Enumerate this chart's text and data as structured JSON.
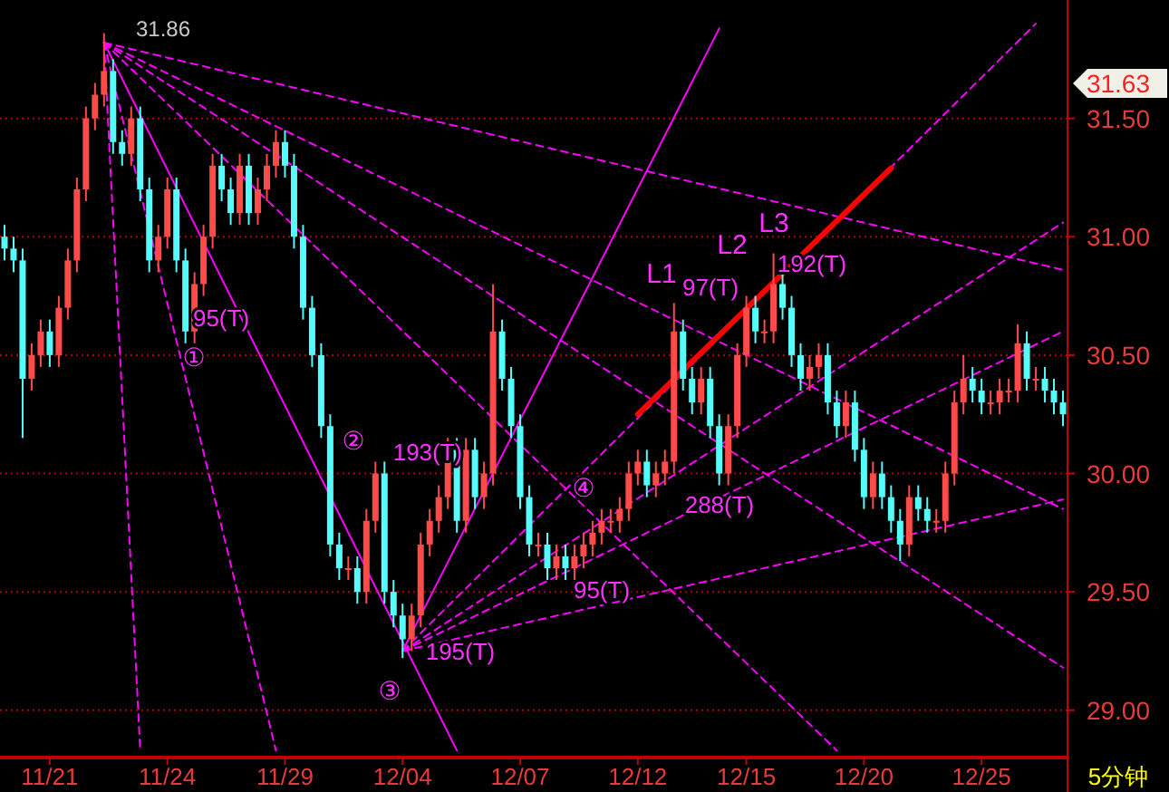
{
  "chart_data": {
    "type": "candlestick",
    "categories": [
      null,
      null,
      null,
      null,
      null,
      "11/21",
      null,
      null,
      null,
      null,
      null,
      null,
      null,
      null,
      null,
      null,
      null,
      null,
      "11/24",
      null,
      null,
      null,
      null,
      null,
      null,
      null,
      null,
      null,
      null,
      null,
      null,
      "11/29",
      null,
      null,
      null,
      null,
      null,
      null,
      null,
      null,
      null,
      null,
      null,
      null,
      "12/04",
      null,
      null,
      null,
      null,
      null,
      null,
      null,
      null,
      null,
      null,
      null,
      null,
      "12/07",
      null,
      null,
      null,
      null,
      null,
      null,
      null,
      null,
      null,
      null,
      null,
      null,
      "12/12",
      null,
      null,
      null,
      null,
      null,
      null,
      null,
      null,
      null,
      null,
      null,
      "12/15",
      null,
      null,
      null,
      null,
      null,
      null,
      null,
      null,
      null,
      null,
      null,
      null,
      "12/20",
      null,
      null,
      null,
      null,
      null,
      null,
      null,
      null,
      null,
      null,
      null,
      null,
      "12/25",
      null,
      null,
      null,
      null,
      null,
      null,
      null,
      null,
      null
    ],
    "ohlc": [
      [
        31.0,
        31.05,
        30.9,
        30.95
      ],
      [
        30.95,
        31.0,
        30.85,
        30.9
      ],
      [
        30.9,
        30.95,
        30.15,
        30.4
      ],
      [
        30.4,
        30.55,
        30.35,
        30.5
      ],
      [
        30.5,
        30.65,
        30.45,
        30.6
      ],
      [
        30.6,
        30.65,
        30.45,
        30.5
      ],
      [
        30.5,
        30.75,
        30.45,
        30.7
      ],
      [
        30.7,
        30.95,
        30.65,
        30.9
      ],
      [
        30.9,
        31.25,
        30.85,
        31.2
      ],
      [
        31.2,
        31.55,
        31.15,
        31.5
      ],
      [
        31.5,
        31.65,
        31.45,
        31.6
      ],
      [
        31.6,
        31.86,
        31.55,
        31.7
      ],
      [
        31.7,
        31.75,
        31.35,
        31.4
      ],
      [
        31.4,
        31.45,
        31.3,
        31.35
      ],
      [
        31.35,
        31.55,
        31.3,
        31.5
      ],
      [
        31.5,
        31.55,
        31.15,
        31.2
      ],
      [
        31.2,
        31.25,
        30.85,
        30.9
      ],
      [
        30.9,
        31.05,
        30.85,
        31.0
      ],
      [
        31.0,
        31.25,
        30.95,
        31.2
      ],
      [
        31.2,
        31.25,
        30.85,
        30.9
      ],
      [
        30.9,
        30.95,
        30.55,
        30.6
      ],
      [
        30.6,
        30.85,
        30.55,
        30.8
      ],
      [
        30.8,
        31.05,
        30.75,
        31.0
      ],
      [
        31.0,
        31.35,
        30.95,
        31.3
      ],
      [
        31.3,
        31.35,
        31.15,
        31.2
      ],
      [
        31.2,
        31.25,
        31.05,
        31.1
      ],
      [
        31.1,
        31.35,
        31.05,
        31.3
      ],
      [
        31.3,
        31.35,
        31.05,
        31.1
      ],
      [
        31.1,
        31.25,
        31.05,
        31.2
      ],
      [
        31.2,
        31.35,
        31.15,
        31.3
      ],
      [
        31.3,
        31.45,
        31.25,
        31.4
      ],
      [
        31.4,
        31.45,
        31.25,
        31.3
      ],
      [
        31.3,
        31.35,
        30.95,
        31.0
      ],
      [
        31.0,
        31.05,
        30.65,
        30.7
      ],
      [
        30.7,
        30.75,
        30.45,
        30.5
      ],
      [
        30.5,
        30.55,
        30.15,
        30.2
      ],
      [
        30.2,
        30.25,
        29.65,
        29.7
      ],
      [
        29.7,
        29.75,
        29.55,
        29.6
      ],
      [
        29.6,
        29.65,
        29.55,
        29.6
      ],
      [
        29.6,
        29.65,
        29.45,
        29.5
      ],
      [
        29.5,
        29.85,
        29.45,
        29.8
      ],
      [
        29.8,
        30.05,
        29.75,
        30.0
      ],
      [
        30.0,
        30.05,
        29.45,
        29.5
      ],
      [
        29.5,
        29.55,
        29.35,
        29.4
      ],
      [
        29.4,
        29.45,
        29.22,
        29.3
      ],
      [
        29.3,
        29.45,
        29.25,
        29.4
      ],
      [
        29.4,
        29.75,
        29.35,
        29.7
      ],
      [
        29.7,
        29.85,
        29.65,
        29.8
      ],
      [
        29.8,
        29.95,
        29.75,
        29.9
      ],
      [
        29.9,
        30.15,
        29.85,
        30.1
      ],
      [
        30.1,
        30.15,
        29.75,
        29.8
      ],
      [
        29.8,
        30.15,
        29.75,
        30.1
      ],
      [
        30.1,
        30.15,
        29.85,
        29.9
      ],
      [
        29.9,
        30.05,
        29.85,
        30.0
      ],
      [
        30.0,
        30.8,
        29.95,
        30.6
      ],
      [
        30.6,
        30.65,
        30.35,
        30.4
      ],
      [
        30.4,
        30.45,
        30.15,
        30.2
      ],
      [
        30.2,
        30.25,
        29.85,
        29.9
      ],
      [
        29.9,
        29.95,
        29.65,
        29.7
      ],
      [
        29.7,
        29.75,
        29.65,
        29.7
      ],
      [
        29.7,
        29.75,
        29.55,
        29.6
      ],
      [
        29.6,
        29.7,
        29.55,
        29.65
      ],
      [
        29.65,
        29.7,
        29.55,
        29.6
      ],
      [
        29.6,
        29.7,
        29.55,
        29.65
      ],
      [
        29.65,
        29.75,
        29.6,
        29.7
      ],
      [
        29.7,
        29.8,
        29.65,
        29.75
      ],
      [
        29.75,
        29.85,
        29.7,
        29.8
      ],
      [
        29.8,
        29.85,
        29.75,
        29.8
      ],
      [
        29.8,
        29.9,
        29.75,
        29.85
      ],
      [
        29.85,
        30.05,
        29.8,
        30.0
      ],
      [
        30.0,
        30.1,
        29.95,
        30.05
      ],
      [
        30.05,
        30.1,
        29.9,
        29.95
      ],
      [
        29.95,
        30.05,
        29.9,
        30.0
      ],
      [
        30.0,
        30.1,
        29.95,
        30.05
      ],
      [
        30.05,
        30.72,
        30.0,
        30.6
      ],
      [
        30.6,
        30.65,
        30.35,
        30.4
      ],
      [
        30.4,
        30.45,
        30.25,
        30.3
      ],
      [
        30.3,
        30.45,
        30.25,
        30.4
      ],
      [
        30.4,
        30.45,
        30.15,
        30.2
      ],
      [
        30.2,
        30.25,
        29.95,
        30.0
      ],
      [
        30.0,
        30.25,
        29.95,
        30.2
      ],
      [
        30.2,
        30.55,
        30.15,
        30.5
      ],
      [
        30.5,
        30.75,
        30.45,
        30.7
      ],
      [
        30.7,
        30.75,
        30.55,
        30.6
      ],
      [
        30.6,
        30.65,
        30.55,
        30.6
      ],
      [
        30.6,
        30.93,
        30.55,
        30.8
      ],
      [
        30.8,
        30.85,
        30.65,
        30.7
      ],
      [
        30.7,
        30.75,
        30.45,
        30.5
      ],
      [
        30.5,
        30.55,
        30.35,
        30.4
      ],
      [
        30.4,
        30.5,
        30.35,
        30.45
      ],
      [
        30.45,
        30.55,
        30.4,
        30.5
      ],
      [
        30.5,
        30.55,
        30.25,
        30.3
      ],
      [
        30.3,
        30.35,
        30.15,
        30.2
      ],
      [
        30.2,
        30.35,
        30.15,
        30.3
      ],
      [
        30.3,
        30.35,
        30.05,
        30.1
      ],
      [
        30.1,
        30.15,
        29.85,
        29.9
      ],
      [
        29.9,
        30.05,
        29.85,
        30.0
      ],
      [
        30.0,
        30.05,
        29.85,
        29.9
      ],
      [
        29.9,
        29.95,
        29.75,
        29.8
      ],
      [
        29.8,
        29.85,
        29.63,
        29.7
      ],
      [
        29.7,
        29.95,
        29.65,
        29.9
      ],
      [
        29.9,
        29.95,
        29.8,
        29.85
      ],
      [
        29.85,
        29.9,
        29.75,
        29.8
      ],
      [
        29.8,
        29.85,
        29.75,
        29.8
      ],
      [
        29.8,
        30.05,
        29.75,
        30.0
      ],
      [
        30.0,
        30.35,
        29.95,
        30.3
      ],
      [
        30.3,
        30.5,
        30.25,
        30.4
      ],
      [
        30.4,
        30.45,
        30.3,
        30.35
      ],
      [
        30.35,
        30.4,
        30.25,
        30.3
      ],
      [
        30.3,
        30.35,
        30.25,
        30.3
      ],
      [
        30.3,
        30.4,
        30.25,
        30.35
      ],
      [
        30.35,
        30.4,
        30.3,
        30.35
      ],
      [
        30.35,
        30.63,
        30.3,
        30.55
      ],
      [
        30.55,
        30.6,
        30.35,
        30.4
      ],
      [
        30.4,
        30.45,
        30.35,
        30.4
      ],
      [
        30.4,
        30.45,
        30.3,
        30.35
      ],
      [
        30.35,
        30.4,
        30.25,
        30.3
      ],
      [
        30.3,
        30.35,
        30.2,
        30.25
      ]
    ],
    "colors": [
      "#54fcfc",
      "#54fcfc",
      "#54fcfc",
      "#ff4a4a",
      "#ff4a4a",
      "#54fcfc",
      "#ff4a4a",
      "#ff4a4a",
      "#ff4a4a",
      "#ff4a4a",
      "#ff4a4a",
      "#ff4a4a",
      "#54fcfc",
      "#54fcfc",
      "#ff4a4a",
      "#54fcfc",
      "#54fcfc",
      "#ff4a4a",
      "#ff4a4a",
      "#54fcfc",
      "#54fcfc",
      "#ff4a4a",
      "#ff4a4a",
      "#ff4a4a",
      "#54fcfc",
      "#54fcfc",
      "#ff4a4a",
      "#54fcfc",
      "#ff4a4a",
      "#ff4a4a",
      "#ff4a4a",
      "#54fcfc",
      "#54fcfc",
      "#54fcfc",
      "#54fcfc",
      "#54fcfc",
      "#54fcfc",
      "#54fcfc",
      "#ff4a4a",
      "#54fcfc",
      "#ff4a4a",
      "#ff4a4a",
      "#54fcfc",
      "#54fcfc",
      "#54fcfc",
      "#ff4a4a",
      "#ff4a4a",
      "#ff4a4a",
      "#ff4a4a",
      "#ff4a4a",
      "#54fcfc",
      "#ff4a4a",
      "#54fcfc",
      "#ff4a4a",
      "#ff4a4a",
      "#54fcfc",
      "#54fcfc",
      "#54fcfc",
      "#54fcfc",
      "#ff4a4a",
      "#54fcfc",
      "#ff4a4a",
      "#54fcfc",
      "#ff4a4a",
      "#ff4a4a",
      "#ff4a4a",
      "#ff4a4a",
      "#ff4a4a",
      "#ff4a4a",
      "#ff4a4a",
      "#ff4a4a",
      "#54fcfc",
      "#ff4a4a",
      "#ff4a4a",
      "#ff4a4a",
      "#54fcfc",
      "#54fcfc",
      "#ff4a4a",
      "#54fcfc",
      "#54fcfc",
      "#ff4a4a",
      "#ff4a4a",
      "#ff4a4a",
      "#54fcfc",
      "#ff4a4a",
      "#ff4a4a",
      "#54fcfc",
      "#54fcfc",
      "#54fcfc",
      "#ff4a4a",
      "#ff4a4a",
      "#54fcfc",
      "#54fcfc",
      "#ff4a4a",
      "#54fcfc",
      "#54fcfc",
      "#ff4a4a",
      "#54fcfc",
      "#54fcfc",
      "#54fcfc",
      "#ff4a4a",
      "#54fcfc",
      "#54fcfc",
      "#ff4a4a",
      "#ff4a4a",
      "#ff4a4a",
      "#ff4a4a",
      "#54fcfc",
      "#54fcfc",
      "#ff4a4a",
      "#ff4a4a",
      "#ff4a4a",
      "#ff4a4a",
      "#54fcfc",
      "#ff4a4a",
      "#54fcfc",
      "#54fcfc",
      "#54fcfc"
    ],
    "ylim": [
      28.8,
      32.0
    ],
    "yticks": [
      {
        "value": 29,
        "label": "29.00"
      },
      {
        "value": 29.5,
        "label": "29.50"
      },
      {
        "value": 30,
        "label": "30.00"
      },
      {
        "value": 30.5,
        "label": "30.50"
      },
      {
        "value": 31,
        "label": "31.00"
      },
      {
        "value": 31.5,
        "label": "31.50"
      }
    ],
    "grid": "y",
    "series": [
      {
        "type": "line",
        "color": "#ff00ff",
        "line_style": "solid",
        "values": [
          null,
          null,
          null,
          null,
          null,
          null,
          null,
          null,
          null,
          null,
          null,
          31.82,
          null,
          null,
          null,
          null,
          null,
          null,
          null,
          null,
          null,
          null,
          null,
          null,
          null,
          null,
          null,
          null,
          null,
          null,
          null,
          null,
          null,
          null,
          null,
          null,
          null,
          null,
          null,
          null,
          null,
          null,
          null,
          null,
          null,
          null,
          null,
          null,
          null,
          null,
          28.83,
          null,
          null,
          null,
          null,
          null,
          null,
          null,
          null,
          null,
          null,
          null,
          null,
          null,
          null,
          null,
          null,
          null,
          null,
          null,
          null,
          null,
          null,
          null,
          null,
          null,
          null,
          null,
          null,
          null,
          null,
          null,
          null,
          null,
          null,
          null,
          null,
          null,
          null,
          null,
          null,
          null,
          null,
          null,
          null,
          null,
          null,
          null,
          null,
          null,
          null,
          null,
          null,
          null,
          null,
          null,
          null,
          null,
          null,
          null,
          null,
          null,
          null,
          null,
          null,
          null,
          null,
          null
        ]
      },
      {
        "type": "line",
        "color": "#ff00ff",
        "line_style": "dashed",
        "values": [
          null,
          null,
          null,
          null,
          null,
          null,
          null,
          null,
          null,
          null,
          null,
          31.82,
          null,
          null,
          null,
          null,
          null,
          null,
          null,
          null,
          null,
          null,
          null,
          null,
          null,
          null,
          null,
          null,
          null,
          null,
          null,
          null,
          null,
          null,
          null,
          null,
          null,
          null,
          null,
          null,
          null,
          null,
          null,
          null,
          null,
          null,
          null,
          null,
          null,
          null,
          null,
          null,
          null,
          null,
          null,
          null,
          null,
          null,
          null,
          null,
          null,
          null,
          null,
          null,
          null,
          null,
          null,
          null,
          null,
          null,
          null,
          null,
          null,
          null,
          null,
          null,
          null,
          null,
          null,
          null,
          null,
          null,
          null,
          null,
          null,
          null,
          null,
          null,
          null,
          null,
          null,
          null,
          null,
          null,
          null,
          null,
          null,
          null,
          null,
          null,
          null,
          null,
          null,
          null,
          null,
          null,
          null,
          null,
          null,
          null,
          null,
          null,
          null,
          null,
          null,
          null,
          null,
          30.86
        ]
      },
      {
        "type": "line",
        "color": "#ff00ff",
        "line_style": "dashed",
        "values": [
          null,
          null,
          null,
          null,
          null,
          null,
          null,
          null,
          null,
          null,
          null,
          31.82,
          null,
          null,
          null,
          null,
          null,
          null,
          null,
          null,
          null,
          null,
          null,
          null,
          null,
          null,
          null,
          null,
          null,
          null,
          null,
          null,
          null,
          null,
          null,
          null,
          null,
          null,
          null,
          null,
          null,
          null,
          null,
          null,
          null,
          null,
          null,
          null,
          null,
          null,
          null,
          null,
          null,
          null,
          null,
          null,
          null,
          null,
          null,
          null,
          null,
          null,
          null,
          null,
          null,
          null,
          null,
          null,
          null,
          null,
          null,
          null,
          null,
          null,
          null,
          null,
          null,
          null,
          null,
          null,
          null,
          null,
          null,
          null,
          null,
          null,
          null,
          null,
          null,
          null,
          null,
          null,
          null,
          null,
          null,
          null,
          null,
          null,
          null,
          null,
          null,
          null,
          null,
          null,
          null,
          null,
          null,
          null,
          null,
          null,
          null,
          null,
          null,
          null,
          null,
          null,
          null,
          29.85
        ]
      },
      {
        "type": "line",
        "color": "#ff00ff",
        "line_style": "dashed",
        "values": [
          null,
          null,
          null,
          null,
          null,
          null,
          null,
          null,
          null,
          null,
          null,
          31.82,
          null,
          null,
          null,
          null,
          null,
          null,
          null,
          null,
          null,
          null,
          null,
          null,
          null,
          null,
          null,
          null,
          null,
          null,
          null,
          null,
          null,
          null,
          null,
          null,
          null,
          null,
          null,
          null,
          null,
          null,
          null,
          null,
          null,
          null,
          null,
          null,
          null,
          null,
          null,
          null,
          null,
          null,
          null,
          null,
          null,
          null,
          null,
          null,
          null,
          null,
          null,
          null,
          null,
          null,
          null,
          null,
          null,
          null,
          null,
          null,
          null,
          null,
          null,
          null,
          null,
          null,
          null,
          null,
          null,
          null,
          null,
          null,
          null,
          null,
          null,
          null,
          null,
          null,
          null,
          null,
          null,
          null,
          null,
          null,
          null,
          null,
          null,
          null,
          null,
          null,
          null,
          null,
          null,
          null,
          null,
          null,
          null,
          null,
          null,
          null,
          null,
          null,
          null,
          null,
          null,
          29.18
        ]
      },
      {
        "type": "line",
        "color": "#ff00ff",
        "line_style": "dashed",
        "values": [
          null,
          null,
          null,
          null,
          null,
          null,
          null,
          null,
          null,
          null,
          null,
          31.82,
          null,
          null,
          null,
          null,
          null,
          null,
          null,
          null,
          null,
          null,
          null,
          null,
          null,
          null,
          null,
          null,
          null,
          null,
          null,
          null,
          null,
          null,
          null,
          null,
          null,
          null,
          null,
          null,
          null,
          null,
          null,
          null,
          null,
          null,
          null,
          null,
          null,
          null,
          null,
          null,
          null,
          null,
          null,
          null,
          null,
          null,
          null,
          null,
          null,
          null,
          null,
          null,
          null,
          null,
          null,
          null,
          null,
          null,
          null,
          null,
          null,
          null,
          null,
          null,
          null,
          null,
          null,
          null,
          null,
          null,
          null,
          null,
          null,
          null,
          null,
          null,
          null,
          null,
          null,
          null,
          28.83,
          null,
          null,
          null,
          null,
          null,
          null,
          null,
          null,
          null,
          null,
          null,
          null,
          null,
          null,
          null,
          null,
          null,
          null,
          null,
          null,
          null,
          null,
          null,
          null,
          null
        ]
      },
      {
        "type": "line",
        "color": "#ff00ff",
        "line_style": "dashed",
        "values": [
          null,
          null,
          null,
          null,
          null,
          null,
          null,
          null,
          null,
          null,
          null,
          31.82,
          null,
          null,
          null,
          28.83,
          null,
          null,
          null,
          null,
          null,
          null,
          null,
          null,
          null,
          null,
          null,
          null,
          null,
          null,
          null,
          null,
          null,
          null,
          null,
          null,
          null,
          null,
          null,
          null,
          null,
          null,
          null,
          null,
          null,
          null,
          null,
          null,
          null,
          null,
          null,
          null,
          null,
          null,
          null,
          null,
          null,
          null,
          null,
          null,
          null,
          null,
          null,
          null,
          null,
          null,
          null,
          null,
          null,
          null,
          null,
          null,
          null,
          null,
          null,
          null,
          null,
          null,
          null,
          null,
          null,
          null,
          null,
          null,
          null,
          null,
          null,
          null,
          null,
          null,
          null,
          null,
          null,
          null,
          null,
          null,
          null,
          null,
          null,
          null,
          null,
          null,
          null,
          null,
          null,
          null,
          null,
          null,
          null,
          null,
          null,
          null,
          null,
          null,
          null,
          null,
          null,
          null
        ]
      },
      {
        "type": "line",
        "color": "#ff00ff",
        "line_style": "dashed",
        "values": [
          null,
          null,
          null,
          null,
          null,
          null,
          null,
          null,
          null,
          null,
          null,
          31.82,
          null,
          null,
          null,
          null,
          null,
          null,
          null,
          null,
          null,
          null,
          null,
          null,
          null,
          null,
          null,
          null,
          null,
          null,
          28.83,
          null,
          null,
          null,
          null,
          null,
          null,
          null,
          null,
          null,
          null,
          null,
          null,
          null,
          null,
          null,
          null,
          null,
          null,
          null,
          null,
          null,
          null,
          null,
          null,
          null,
          null,
          null,
          null,
          null,
          null,
          null,
          null,
          null,
          null,
          null,
          null,
          null,
          null,
          null,
          null,
          null,
          null,
          null,
          null,
          null,
          null,
          null,
          null,
          null,
          null,
          null,
          null,
          null,
          null,
          null,
          null,
          null,
          null,
          null,
          null,
          null,
          null,
          null,
          null,
          null,
          null,
          null,
          null,
          null,
          null,
          null,
          null,
          null,
          null,
          null,
          null,
          null,
          null,
          null,
          null,
          null,
          null,
          null,
          null,
          null,
          null,
          null
        ]
      },
      {
        "type": "line",
        "color": "#ff00ff",
        "line_style": "solid",
        "values": [
          null,
          null,
          null,
          null,
          null,
          null,
          null,
          null,
          null,
          null,
          null,
          null,
          null,
          null,
          null,
          null,
          null,
          null,
          null,
          null,
          null,
          null,
          null,
          null,
          null,
          null,
          null,
          null,
          null,
          null,
          null,
          null,
          null,
          null,
          null,
          null,
          null,
          null,
          null,
          null,
          null,
          null,
          null,
          null,
          29.25,
          null,
          null,
          null,
          null,
          null,
          null,
          null,
          null,
          null,
          null,
          null,
          null,
          null,
          null,
          null,
          null,
          null,
          null,
          null,
          null,
          null,
          null,
          null,
          null,
          null,
          null,
          null,
          null,
          null,
          null,
          null,
          null,
          null,
          null,
          31.88,
          null,
          null,
          null,
          null,
          null,
          null,
          null,
          null,
          null,
          null,
          null,
          null,
          null,
          null,
          null,
          null,
          null,
          null,
          null,
          null,
          null,
          null,
          null,
          null,
          null,
          null,
          null,
          null,
          null,
          null,
          null,
          null,
          null,
          null,
          null,
          null,
          null,
          null
        ]
      },
      {
        "type": "line",
        "color": "#ff00ff",
        "line_style": "dashed",
        "values": [
          null,
          null,
          null,
          null,
          null,
          null,
          null,
          null,
          null,
          null,
          null,
          null,
          null,
          null,
          null,
          null,
          null,
          null,
          null,
          null,
          null,
          null,
          null,
          null,
          null,
          null,
          null,
          null,
          null,
          null,
          null,
          null,
          null,
          null,
          null,
          null,
          null,
          null,
          null,
          null,
          null,
          null,
          null,
          null,
          29.25,
          null,
          null,
          null,
          null,
          null,
          null,
          null,
          null,
          null,
          null,
          null,
          null,
          null,
          null,
          null,
          null,
          null,
          null,
          null,
          null,
          null,
          null,
          null,
          null,
          null,
          null,
          null,
          null,
          null,
          null,
          null,
          null,
          null,
          null,
          null,
          null,
          null,
          null,
          null,
          null,
          null,
          null,
          null,
          null,
          null,
          null,
          null,
          null,
          null,
          null,
          null,
          null,
          null,
          null,
          null,
          null,
          null,
          null,
          null,
          null,
          null,
          null,
          null,
          null,
          null,
          null,
          null,
          null,
          null,
          null,
          null,
          null,
          29.89
        ]
      },
      {
        "type": "line",
        "color": "#ff00ff",
        "line_style": "dashed",
        "values": [
          null,
          null,
          null,
          null,
          null,
          null,
          null,
          null,
          null,
          null,
          null,
          null,
          null,
          null,
          null,
          null,
          null,
          null,
          null,
          null,
          null,
          null,
          null,
          null,
          null,
          null,
          null,
          null,
          null,
          null,
          null,
          null,
          null,
          null,
          null,
          null,
          null,
          null,
          null,
          null,
          null,
          null,
          null,
          null,
          29.25,
          null,
          null,
          null,
          null,
          null,
          null,
          null,
          null,
          null,
          null,
          null,
          null,
          null,
          null,
          null,
          null,
          null,
          null,
          null,
          null,
          null,
          null,
          null,
          null,
          null,
          null,
          null,
          null,
          null,
          null,
          null,
          null,
          null,
          null,
          null,
          null,
          null,
          null,
          null,
          null,
          null,
          null,
          null,
          null,
          null,
          null,
          null,
          null,
          null,
          null,
          null,
          null,
          null,
          null,
          null,
          null,
          null,
          null,
          null,
          null,
          null,
          null,
          null,
          null,
          null,
          null,
          null,
          null,
          null,
          null,
          null,
          null,
          30.6
        ]
      },
      {
        "type": "line",
        "color": "#ff00ff",
        "line_style": "dashed",
        "values": [
          null,
          null,
          null,
          null,
          null,
          null,
          null,
          null,
          null,
          null,
          null,
          null,
          null,
          null,
          null,
          null,
          null,
          null,
          null,
          null,
          null,
          null,
          null,
          null,
          null,
          null,
          null,
          null,
          null,
          null,
          null,
          null,
          null,
          null,
          null,
          null,
          null,
          null,
          null,
          null,
          null,
          null,
          null,
          null,
          29.25,
          null,
          null,
          null,
          null,
          null,
          null,
          null,
          null,
          null,
          null,
          null,
          null,
          null,
          null,
          null,
          null,
          null,
          null,
          null,
          null,
          null,
          null,
          null,
          null,
          null,
          null,
          null,
          null,
          null,
          null,
          null,
          null,
          null,
          null,
          null,
          null,
          null,
          null,
          null,
          null,
          null,
          null,
          null,
          null,
          null,
          null,
          null,
          null,
          null,
          null,
          null,
          null,
          null,
          null,
          null,
          null,
          null,
          null,
          null,
          null,
          null,
          null,
          null,
          null,
          null,
          null,
          null,
          null,
          null,
          null,
          null,
          null,
          31.06
        ]
      },
      {
        "type": "line",
        "color": "#ff00ff",
        "line_style": "dashed",
        "values": [
          null,
          null,
          null,
          null,
          null,
          null,
          null,
          null,
          null,
          null,
          null,
          null,
          null,
          null,
          null,
          null,
          null,
          null,
          null,
          null,
          null,
          null,
          null,
          null,
          null,
          null,
          null,
          null,
          null,
          null,
          null,
          null,
          null,
          null,
          null,
          null,
          null,
          null,
          null,
          null,
          null,
          null,
          null,
          null,
          29.25,
          null,
          null,
          null,
          null,
          null,
          null,
          null,
          null,
          null,
          null,
          null,
          null,
          null,
          null,
          null,
          null,
          null,
          null,
          null,
          null,
          null,
          null,
          null,
          null,
          null,
          null,
          null,
          null,
          null,
          null,
          null,
          null,
          null,
          null,
          null,
          null,
          null,
          null,
          null,
          null,
          null,
          null,
          null,
          null,
          null,
          null,
          null,
          null,
          null,
          null,
          null,
          null,
          null,
          null,
          null,
          null,
          null,
          null,
          null,
          null,
          null,
          null,
          null,
          null,
          null,
          null,
          null,
          null,
          null,
          31.9,
          null,
          null,
          null
        ]
      },
      {
        "type": "line",
        "color": "#ff0000",
        "line_style": "solid",
        "values": [
          null,
          null,
          null,
          null,
          null,
          null,
          null,
          null,
          null,
          null,
          null,
          null,
          null,
          null,
          null,
          null,
          null,
          null,
          null,
          null,
          null,
          null,
          null,
          null,
          null,
          null,
          null,
          null,
          null,
          null,
          null,
          null,
          null,
          null,
          null,
          null,
          null,
          null,
          null,
          null,
          null,
          null,
          null,
          null,
          null,
          null,
          null,
          null,
          null,
          null,
          null,
          null,
          null,
          null,
          null,
          null,
          null,
          null,
          null,
          null,
          null,
          null,
          null,
          null,
          null,
          null,
          null,
          null,
          null,
          null,
          30.25,
          null,
          null,
          null,
          null,
          null,
          null,
          null,
          null,
          null,
          null,
          null,
          null,
          null,
          null,
          null,
          null,
          null,
          null,
          null,
          null,
          null,
          null,
          null,
          null,
          null,
          null,
          null,
          31.29,
          null,
          null,
          null,
          null,
          null,
          null,
          null,
          null,
          null,
          null,
          null,
          null,
          null,
          null,
          null,
          null,
          null,
          null,
          null
        ]
      }
    ],
    "annotations": [
      "31.86",
      "31.63",
      "95(T)",
      "①",
      "②",
      "193(T)",
      "③",
      "195(T)",
      "④",
      "95(T)",
      "288(T)",
      "L1",
      "97(T)",
      "L2",
      "L3",
      "192(T)",
      "5分钟"
    ]
  }
}
